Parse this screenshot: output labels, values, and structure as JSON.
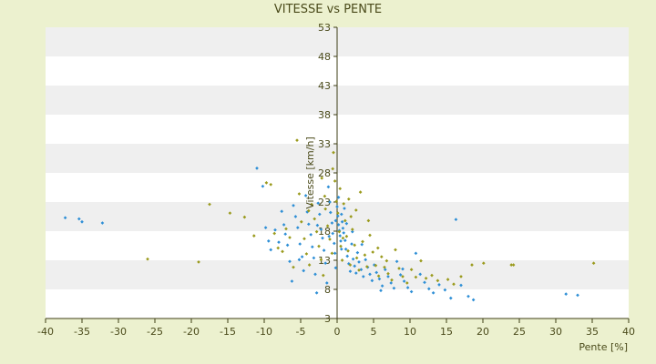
{
  "chart_data": {
    "type": "scatter",
    "title": "VITESSE vs PENTE",
    "xlabel": "Pente [%]",
    "ylabel": "Vitesse [km/h]",
    "xlim": [
      -40,
      40
    ],
    "ylim": [
      3,
      53
    ],
    "xticks": [
      -40,
      -35,
      -30,
      -25,
      -20,
      -15,
      -10,
      -5,
      0,
      5,
      10,
      15,
      20,
      25,
      30,
      35,
      40
    ],
    "yticks": [
      3,
      8,
      13,
      18,
      23,
      28,
      33,
      38,
      43,
      48,
      53
    ],
    "background_bands": true,
    "colors": {
      "page_bg": "#ecf1cf",
      "plot_bg": "#ffffff",
      "band": "#efefef",
      "axis": "#3e3e14",
      "series_a": "#2e8fd6",
      "series_b": "#9a9a1c"
    },
    "series": [
      {
        "color": "#2e8fd6",
        "points": [
          [
            -37.3,
            20.3
          ],
          [
            -35.4,
            20.1
          ],
          [
            -35.0,
            19.6
          ],
          [
            -32.2,
            19.4
          ],
          [
            -11.0,
            28.8
          ],
          [
            -10.2,
            25.7
          ],
          [
            -9.8,
            18.6
          ],
          [
            -9.4,
            16.3
          ],
          [
            -9.1,
            14.8
          ],
          [
            -8.5,
            18.2
          ],
          [
            -8.0,
            16.1
          ],
          [
            -7.6,
            21.4
          ],
          [
            -7.3,
            19.1
          ],
          [
            -7.1,
            17.5
          ],
          [
            -6.8,
            15.6
          ],
          [
            -6.5,
            12.8
          ],
          [
            -6.2,
            9.4
          ],
          [
            -6.0,
            22.4
          ],
          [
            -5.7,
            20.5
          ],
          [
            -5.4,
            18.6
          ],
          [
            -5.1,
            15.8
          ],
          [
            -4.8,
            13.6
          ],
          [
            -4.6,
            11.2
          ],
          [
            -4.3,
            24.1
          ],
          [
            -4.1,
            21.3
          ],
          [
            -3.9,
            19.2
          ],
          [
            -3.6,
            17.4
          ],
          [
            -3.4,
            15.3
          ],
          [
            -3.2,
            13.4
          ],
          [
            -3.0,
            10.6
          ],
          [
            -2.8,
            7.4
          ],
          [
            -2.6,
            22.8
          ],
          [
            -2.4,
            20.9
          ],
          [
            -2.2,
            18.3
          ],
          [
            -2.0,
            16.8
          ],
          [
            -1.8,
            14.7
          ],
          [
            -1.6,
            12.5
          ],
          [
            -1.4,
            9.1
          ],
          [
            -1.2,
            25.6
          ],
          [
            -1.0,
            23.0
          ],
          [
            -0.9,
            21.2
          ],
          [
            -0.7,
            19.4
          ],
          [
            -0.6,
            17.6
          ],
          [
            -0.4,
            15.9
          ],
          [
            -0.3,
            14.2
          ],
          [
            -0.2,
            11.7
          ],
          [
            0.0,
            22.2
          ],
          [
            0.1,
            20.6
          ],
          [
            0.2,
            19.1
          ],
          [
            0.3,
            18.1
          ],
          [
            0.4,
            17.2
          ],
          [
            0.5,
            16.3
          ],
          [
            0.6,
            20.9
          ],
          [
            0.7,
            19.6
          ],
          [
            0.8,
            18.5
          ],
          [
            0.9,
            17.7
          ],
          [
            1.0,
            21.9
          ],
          [
            1.1,
            16.4
          ],
          [
            1.2,
            14.9
          ],
          [
            1.4,
            13.7
          ],
          [
            1.6,
            12.4
          ],
          [
            1.8,
            11.1
          ],
          [
            2.0,
            15.8
          ],
          [
            2.2,
            13.2
          ],
          [
            2.4,
            12.0
          ],
          [
            2.6,
            10.8
          ],
          [
            2.8,
            14.3
          ],
          [
            3.0,
            12.7
          ],
          [
            3.3,
            11.4
          ],
          [
            3.6,
            10.2
          ],
          [
            3.9,
            13.1
          ],
          [
            4.2,
            11.8
          ],
          [
            4.5,
            10.6
          ],
          [
            4.8,
            9.5
          ],
          [
            5.1,
            12.2
          ],
          [
            5.4,
            10.9
          ],
          [
            5.8,
            9.8
          ],
          [
            6.2,
            8.6
          ],
          [
            6.6,
            11.4
          ],
          [
            7.0,
            10.2
          ],
          [
            7.4,
            9.1
          ],
          [
            7.8,
            8.2
          ],
          [
            8.2,
            12.8
          ],
          [
            8.7,
            10.5
          ],
          [
            9.2,
            9.4
          ],
          [
            9.7,
            8.3
          ],
          [
            10.2,
            7.6
          ],
          [
            10.8,
            14.2
          ],
          [
            11.4,
            10.6
          ],
          [
            12.0,
            9.2
          ],
          [
            12.6,
            8.1
          ],
          [
            13.2,
            7.4
          ],
          [
            14.0,
            8.8
          ],
          [
            14.8,
            7.9
          ],
          [
            15.6,
            6.5
          ],
          [
            16.3,
            20.0
          ],
          [
            17.0,
            8.7
          ],
          [
            18.0,
            6.8
          ],
          [
            18.7,
            6.2
          ],
          [
            0.2,
            23.8
          ],
          [
            -0.2,
            19.8
          ],
          [
            0.6,
            14.9
          ],
          [
            1.3,
            19.3
          ],
          [
            2.1,
            17.9
          ],
          [
            -1.1,
            17.1
          ],
          [
            -2.7,
            19.0
          ],
          [
            3.4,
            15.7
          ],
          [
            -5.2,
            13.1
          ],
          [
            6.0,
            7.8
          ],
          [
            9.0,
            11.5
          ],
          [
            31.4,
            7.2
          ],
          [
            33.0,
            7.0
          ]
        ]
      },
      {
        "color": "#9a9a1c",
        "points": [
          [
            -26.0,
            13.2
          ],
          [
            -19.0,
            12.7
          ],
          [
            -17.5,
            22.6
          ],
          [
            -14.7,
            21.1
          ],
          [
            -12.7,
            20.4
          ],
          [
            -11.4,
            17.2
          ],
          [
            -9.7,
            26.3
          ],
          [
            -9.1,
            26.0
          ],
          [
            -8.6,
            17.6
          ],
          [
            -8.1,
            15.1
          ],
          [
            -7.5,
            14.5
          ],
          [
            -7.0,
            18.4
          ],
          [
            -6.5,
            16.9
          ],
          [
            -6.0,
            11.8
          ],
          [
            -5.5,
            33.6
          ],
          [
            -5.2,
            24.4
          ],
          [
            -4.9,
            19.6
          ],
          [
            -4.5,
            16.7
          ],
          [
            -4.2,
            14.1
          ],
          [
            -3.8,
            12.2
          ],
          [
            -3.5,
            22.6
          ],
          [
            -3.1,
            20.1
          ],
          [
            -2.8,
            17.9
          ],
          [
            -2.5,
            15.4
          ],
          [
            -2.2,
            13.1
          ],
          [
            -1.9,
            10.4
          ],
          [
            -1.6,
            21.8
          ],
          [
            -1.3,
            18.9
          ],
          [
            -1.0,
            16.6
          ],
          [
            -0.7,
            14.2
          ],
          [
            -0.5,
            31.5
          ],
          [
            -0.3,
            26.6
          ],
          [
            -0.1,
            23.1
          ],
          [
            0.1,
            21.1
          ],
          [
            0.3,
            17.9
          ],
          [
            0.5,
            15.4
          ],
          [
            0.7,
            13.0
          ],
          [
            0.9,
            22.7
          ],
          [
            1.1,
            19.8
          ],
          [
            1.3,
            17.1
          ],
          [
            1.5,
            14.6
          ],
          [
            1.8,
            12.2
          ],
          [
            2.1,
            18.3
          ],
          [
            2.4,
            15.6
          ],
          [
            2.7,
            13.4
          ],
          [
            3.0,
            11.3
          ],
          [
            3.2,
            24.7
          ],
          [
            3.5,
            16.2
          ],
          [
            3.8,
            13.9
          ],
          [
            4.1,
            11.9
          ],
          [
            4.5,
            17.3
          ],
          [
            4.9,
            14.4
          ],
          [
            5.3,
            12.1
          ],
          [
            5.7,
            10.3
          ],
          [
            6.1,
            13.6
          ],
          [
            6.5,
            11.8
          ],
          [
            7.0,
            10.7
          ],
          [
            7.5,
            9.6
          ],
          [
            8.0,
            14.8
          ],
          [
            8.5,
            11.6
          ],
          [
            9.0,
            10.2
          ],
          [
            9.6,
            9.1
          ],
          [
            10.2,
            11.4
          ],
          [
            10.8,
            10.1
          ],
          [
            11.5,
            12.9
          ],
          [
            12.2,
            9.9
          ],
          [
            13.0,
            10.4
          ],
          [
            13.8,
            9.5
          ],
          [
            15.2,
            9.7
          ],
          [
            16.0,
            8.9
          ],
          [
            17.0,
            10.2
          ],
          [
            18.5,
            12.2
          ],
          [
            20.1,
            12.5
          ],
          [
            23.9,
            12.2
          ],
          [
            24.2,
            12.2
          ],
          [
            35.2,
            12.5
          ],
          [
            0.4,
            25.3
          ],
          [
            -0.6,
            28.7
          ],
          [
            0.8,
            16.8
          ],
          [
            1.9,
            20.5
          ],
          [
            2.6,
            21.6
          ],
          [
            -1.7,
            24.0
          ],
          [
            4.3,
            19.8
          ],
          [
            5.6,
            15.1
          ],
          [
            6.8,
            12.9
          ],
          [
            -3.9,
            21.5
          ],
          [
            -2.1,
            27.1
          ],
          [
            1.6,
            23.5
          ]
        ]
      }
    ]
  }
}
